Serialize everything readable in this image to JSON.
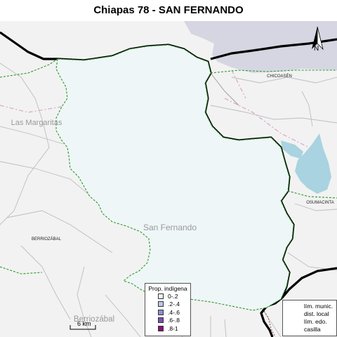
{
  "title": "Chiapas 78 - SAN FERNANDO",
  "north_label": "N",
  "places": {
    "chicoasen": "CHICOASÉN",
    "las_margaritas": "Las Margaritas",
    "berriozabal_municipality": "BERRIOZÁBAL",
    "osumacinta": "OSUMACINTA",
    "san_fernando": "San Fernando",
    "berriozabal_town": "Berriozábal"
  },
  "scale_label": "6 km",
  "legend_proportion": {
    "title": "Prop. indígena",
    "items": [
      {
        "label": "0-.2",
        "color": "#eef6f8"
      },
      {
        "label": ".2-.4",
        "color": "#b9c9e8"
      },
      {
        "label": ".4-.6",
        "color": "#8a8fd6"
      },
      {
        "label": ".6-.8",
        "color": "#7a4fb8"
      },
      {
        "label": ".8-1",
        "color": "#8b0f7a"
      }
    ]
  },
  "legend_lines": {
    "items": [
      {
        "label": "lím. munic.",
        "style": "municipal"
      },
      {
        "label": "dist. local",
        "style": "district"
      },
      {
        "label": "lím. edo.",
        "style": "state"
      },
      {
        "label": "casilla",
        "style": "point"
      }
    ]
  },
  "colors": {
    "municipality_fill": "#eef6f8",
    "background": "#f2f2f2",
    "district_border": "#000000",
    "municipal_border": "#2a9a2a",
    "water": "#a9d3e0",
    "neighbor_district": "#d6d6e2"
  }
}
